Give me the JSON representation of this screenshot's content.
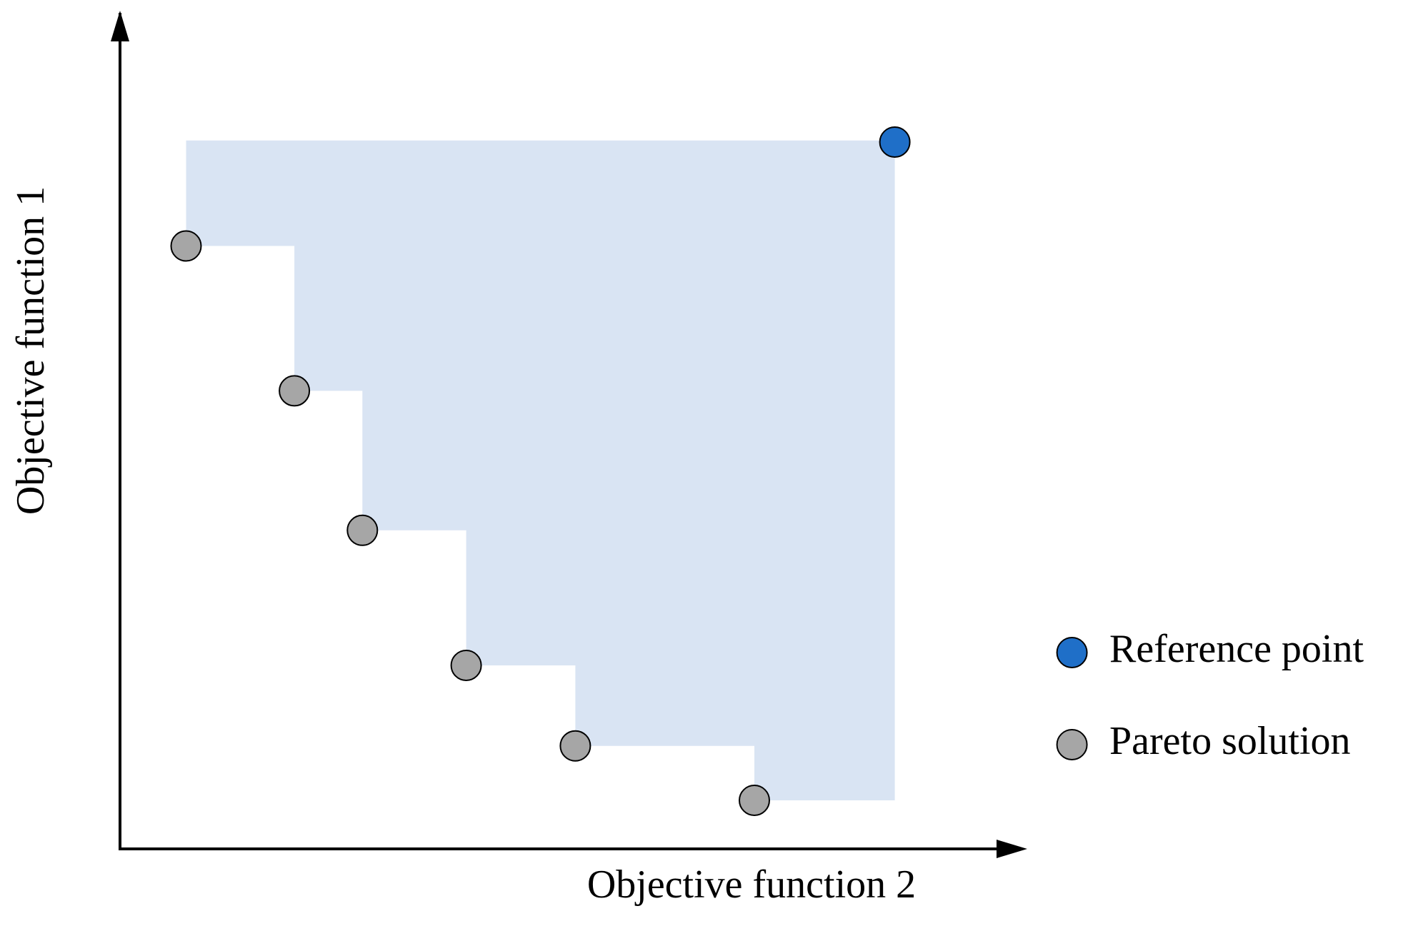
{
  "axes": {
    "x_label": "Objective function 2",
    "y_label": "Objective function 1"
  },
  "legend": {
    "items": [
      "Reference point",
      "Pareto solution"
    ]
  }
}
